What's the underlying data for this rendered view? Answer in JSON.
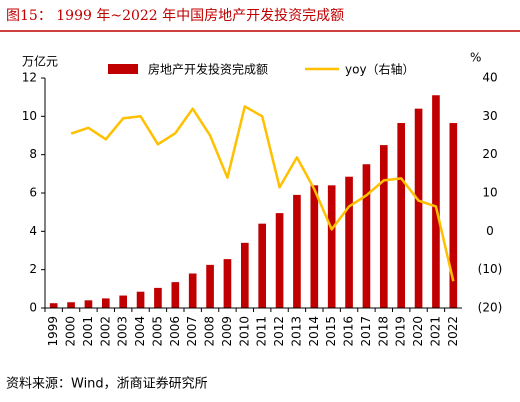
{
  "title": "图15：  1999 年~2022 年中国房地产开发投资完成额",
  "source": "资料来源：Wind，浙商证券研究所",
  "chart_data": {
    "type": "bar_line",
    "y_unit": "万亿元",
    "y2_unit": "%",
    "categories": [
      "1999",
      "2000",
      "2001",
      "2002",
      "2003",
      "2004",
      "2005",
      "2006",
      "2007",
      "2008",
      "2009",
      "2010",
      "2011",
      "2012",
      "2013",
      "2014",
      "2015",
      "2016",
      "2017",
      "2018",
      "2019",
      "2020",
      "2021",
      "2022"
    ],
    "series": [
      {
        "name": "房地产开发投资完成额",
        "color": "#c00000",
        "type": "bar",
        "values": [
          0.25,
          0.3,
          0.4,
          0.5,
          0.65,
          0.85,
          1.05,
          1.35,
          1.8,
          2.25,
          2.55,
          3.4,
          4.4,
          4.95,
          5.9,
          6.4,
          6.4,
          6.85,
          7.5,
          8.5,
          9.65,
          10.4,
          11.1,
          9.65
        ]
      },
      {
        "name": "yoy（右轴）",
        "color": "#ffc000",
        "type": "line",
        "axis": "y2",
        "values": [
          null,
          25.5,
          27,
          24,
          29.5,
          30,
          22.7,
          25.6,
          32,
          25,
          14,
          32.6,
          30,
          11.5,
          19.3,
          11,
          0.5,
          6.5,
          9.4,
          13.3,
          13.8,
          8,
          6.5,
          -13
        ]
      }
    ],
    "ylim": [
      0,
      12
    ],
    "yticks": [
      0,
      2,
      4,
      6,
      8,
      10,
      12
    ],
    "y2lim": [
      -20,
      40
    ],
    "y2ticks": [
      {
        "value": -20,
        "label": "(20)"
      },
      {
        "value": -10,
        "label": "(10)"
      },
      0,
      10,
      20,
      30,
      40
    ]
  }
}
